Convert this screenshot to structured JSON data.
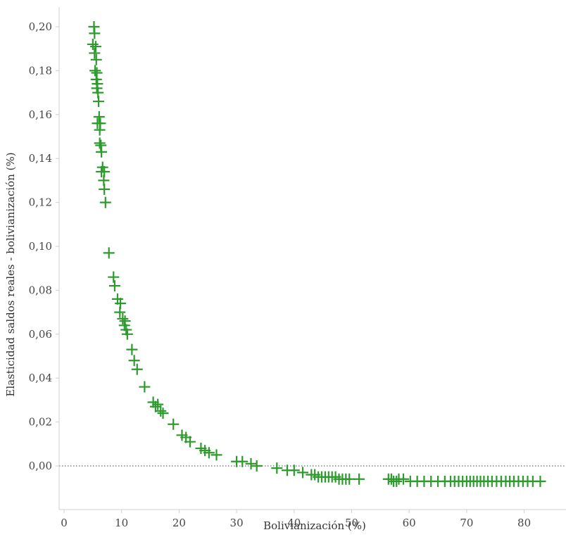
{
  "chart_data": {
    "type": "scatter",
    "xlabel": "Bolivianización (%)",
    "ylabel": "Elasticidad saldos reales - bolivianización (%)",
    "xlim": [
      -1,
      87
    ],
    "ylim": [
      -0.0195,
      0.207
    ],
    "x_ticks": [
      0,
      10,
      20,
      30,
      40,
      50,
      60,
      70,
      80
    ],
    "x_tick_labels": [
      "0",
      "10",
      "20",
      "30",
      "40",
      "50",
      "60",
      "70",
      "80"
    ],
    "y_ticks": [
      0.0,
      0.02,
      0.04,
      0.06,
      0.08,
      0.1,
      0.12,
      0.14,
      0.16,
      0.18,
      0.2
    ],
    "y_tick_labels": [
      "0,00",
      "0,02",
      "0,04",
      "0,06",
      "0,08",
      "0,10",
      "0,12",
      "0,14",
      "0,16",
      "0,18",
      "0,20"
    ],
    "reference_line_y": 0,
    "grid": false,
    "marker": "plus",
    "colors": {
      "marker": "#2e9a2e",
      "axis": "#cfcfcf",
      "text": "#444444",
      "reference_line": "#444444"
    },
    "series": [
      {
        "points": [
          [
            5.2,
            0.2
          ],
          [
            5.3,
            0.197
          ],
          [
            5.0,
            0.192
          ],
          [
            5.5,
            0.191
          ],
          [
            5.3,
            0.188
          ],
          [
            5.6,
            0.185
          ],
          [
            5.4,
            0.18
          ],
          [
            5.7,
            0.179
          ],
          [
            5.6,
            0.176
          ],
          [
            5.8,
            0.174
          ],
          [
            5.7,
            0.172
          ],
          [
            5.9,
            0.17
          ],
          [
            6.0,
            0.166
          ],
          [
            6.1,
            0.159
          ],
          [
            5.8,
            0.156
          ],
          [
            6.3,
            0.156
          ],
          [
            6.2,
            0.153
          ],
          [
            6.2,
            0.147
          ],
          [
            6.4,
            0.146
          ],
          [
            6.5,
            0.143
          ],
          [
            6.7,
            0.136
          ],
          [
            6.5,
            0.134
          ],
          [
            7.0,
            0.134
          ],
          [
            6.9,
            0.13
          ],
          [
            7.0,
            0.126
          ],
          [
            7.2,
            0.12
          ],
          [
            7.8,
            0.097
          ],
          [
            8.6,
            0.086
          ],
          [
            8.8,
            0.082
          ],
          [
            9.3,
            0.076
          ],
          [
            9.8,
            0.074
          ],
          [
            9.7,
            0.07
          ],
          [
            10.2,
            0.067
          ],
          [
            10.6,
            0.066
          ],
          [
            10.5,
            0.064
          ],
          [
            10.8,
            0.062
          ],
          [
            11.0,
            0.06
          ],
          [
            11.8,
            0.053
          ],
          [
            12.2,
            0.048
          ],
          [
            12.7,
            0.044
          ],
          [
            14.0,
            0.036
          ],
          [
            15.5,
            0.029
          ],
          [
            15.9,
            0.027
          ],
          [
            16.3,
            0.028
          ],
          [
            16.8,
            0.025
          ],
          [
            17.2,
            0.024
          ],
          [
            19.0,
            0.019
          ],
          [
            20.5,
            0.014
          ],
          [
            21.2,
            0.013
          ],
          [
            21.9,
            0.011
          ],
          [
            23.8,
            0.008
          ],
          [
            24.5,
            0.007
          ],
          [
            25.2,
            0.006
          ],
          [
            26.5,
            0.005
          ],
          [
            30.0,
            0.002
          ],
          [
            31.0,
            0.002
          ],
          [
            32.5,
            0.001
          ],
          [
            33.5,
            0.0
          ],
          [
            37.0,
            -0.001
          ],
          [
            38.8,
            -0.002
          ],
          [
            40.0,
            -0.002
          ],
          [
            41.5,
            -0.003
          ],
          [
            43.0,
            -0.004
          ],
          [
            43.6,
            -0.004
          ],
          [
            44.2,
            -0.005
          ],
          [
            44.8,
            -0.005
          ],
          [
            45.4,
            -0.005
          ],
          [
            46.0,
            -0.005
          ],
          [
            46.6,
            -0.005
          ],
          [
            47.2,
            -0.005
          ],
          [
            47.8,
            -0.006
          ],
          [
            48.4,
            -0.006
          ],
          [
            49.0,
            -0.006
          ],
          [
            49.6,
            -0.006
          ],
          [
            51.3,
            -0.006
          ],
          [
            56.4,
            -0.006
          ],
          [
            56.9,
            -0.006
          ],
          [
            57.3,
            -0.007
          ],
          [
            57.8,
            -0.007
          ],
          [
            58.2,
            -0.006
          ],
          [
            59.0,
            -0.006
          ],
          [
            60.2,
            -0.007
          ],
          [
            61.4,
            -0.007
          ],
          [
            62.6,
            -0.007
          ],
          [
            63.8,
            -0.007
          ],
          [
            65.0,
            -0.007
          ],
          [
            66.2,
            -0.007
          ],
          [
            67.2,
            -0.007
          ],
          [
            67.9,
            -0.007
          ],
          [
            68.6,
            -0.007
          ],
          [
            69.3,
            -0.007
          ],
          [
            70.0,
            -0.007
          ],
          [
            70.6,
            -0.007
          ],
          [
            71.2,
            -0.007
          ],
          [
            71.8,
            -0.007
          ],
          [
            72.4,
            -0.007
          ],
          [
            73.0,
            -0.007
          ],
          [
            73.7,
            -0.007
          ],
          [
            74.4,
            -0.007
          ],
          [
            75.2,
            -0.007
          ],
          [
            76.0,
            -0.007
          ],
          [
            76.8,
            -0.007
          ],
          [
            77.5,
            -0.007
          ],
          [
            78.2,
            -0.007
          ],
          [
            79.0,
            -0.007
          ],
          [
            79.8,
            -0.007
          ],
          [
            80.6,
            -0.007
          ],
          [
            81.5,
            -0.007
          ],
          [
            82.8,
            -0.007
          ]
        ]
      }
    ]
  }
}
